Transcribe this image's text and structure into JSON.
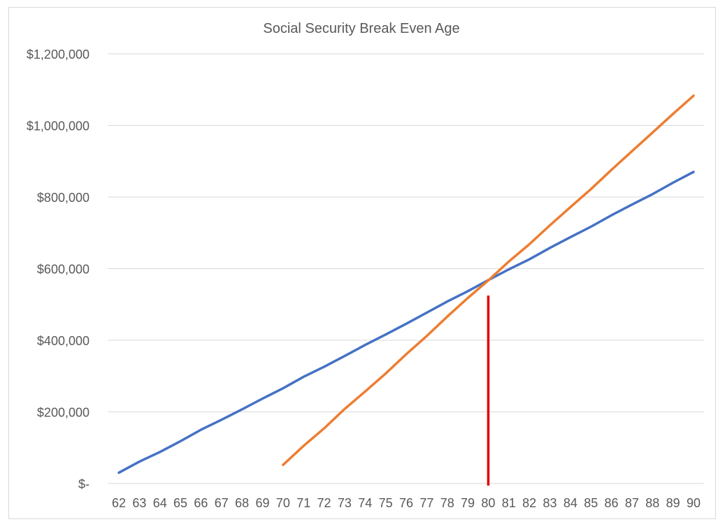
{
  "chart_data": {
    "type": "line",
    "title": "Social Security Break Even Age",
    "xlabel": "",
    "ylabel": "",
    "x": [
      62,
      63,
      64,
      65,
      66,
      67,
      68,
      69,
      70,
      71,
      72,
      73,
      74,
      75,
      76,
      77,
      78,
      79,
      80,
      81,
      82,
      83,
      84,
      85,
      86,
      87,
      88,
      89,
      90
    ],
    "x_tick_labels": [
      "62",
      "63",
      "64",
      "65",
      "66",
      "67",
      "68",
      "69",
      "70",
      "71",
      "72",
      "73",
      "74",
      "75",
      "76",
      "77",
      "78",
      "79",
      "80",
      "81",
      "82",
      "83",
      "84",
      "85",
      "86",
      "87",
      "88",
      "89",
      "90"
    ],
    "y_tick_labels": [
      "$-",
      "$200,000",
      "$400,000",
      "$600,000",
      "$800,000",
      "$1,000,000",
      "$1,200,000"
    ],
    "y_tick_values": [
      0,
      200000,
      400000,
      600000,
      800000,
      1000000,
      1200000
    ],
    "ylim": [
      0,
      1200000
    ],
    "grid": "horizontal",
    "legend": "none",
    "series": [
      {
        "color": "#4472c4",
        "values": [
          30000,
          61000,
          88000,
          118000,
          150000,
          178000,
          207000,
          237000,
          266000,
          298000,
          326000,
          356000,
          387000,
          416000,
          446000,
          477000,
          508000,
          537000,
          568000,
          598000,
          626000,
          658000,
          688000,
          717000,
          749000,
          779000,
          808000,
          840000,
          870000
        ]
      },
      {
        "color": "#ed7d31",
        "values": [
          null,
          null,
          null,
          null,
          null,
          null,
          null,
          null,
          52000,
          105000,
          154000,
          208000,
          257000,
          307000,
          361000,
          412000,
          466000,
          518000,
          567000,
          620000,
          668000,
          721000,
          772000,
          822000,
          876000,
          928000,
          980000,
          1032000,
          1083000
        ]
      }
    ],
    "annotations": [
      {
        "type": "vertical-line",
        "x": 80,
        "y_from": 0,
        "y_to": 525000,
        "color": "#e00000"
      }
    ]
  }
}
